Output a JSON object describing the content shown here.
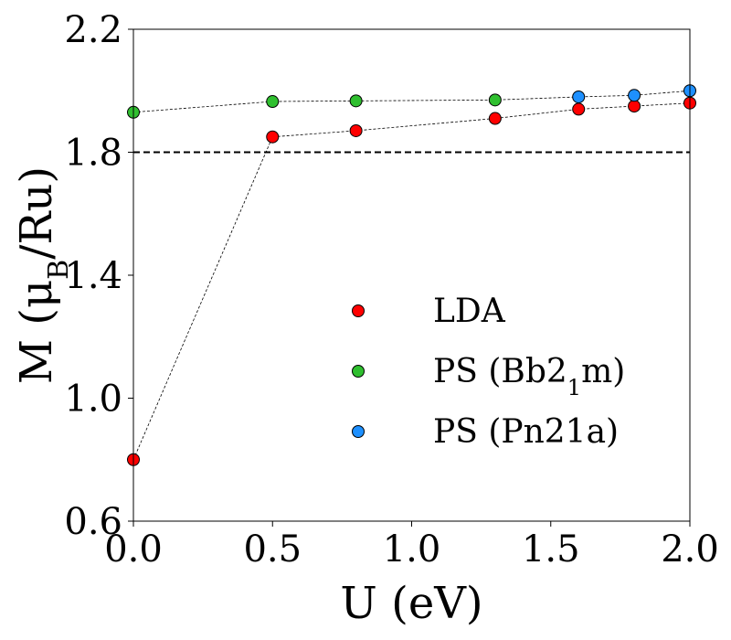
{
  "chart_data": {
    "type": "scatter",
    "xlabel": "U (eV)",
    "ylabel": "M (μ",
    "ylabel_sub": "B",
    "ylabel_tail": "/Ru)",
    "xlim": [
      0.0,
      2.0
    ],
    "ylim": [
      0.6,
      2.2
    ],
    "x_ticks": [
      0.0,
      0.5,
      1.0,
      1.5,
      2.0
    ],
    "x_tick_labels": [
      "0.0",
      "0.5",
      "1.0",
      "1.5",
      "2.0"
    ],
    "y_ticks": [
      0.6,
      1.0,
      1.4,
      1.8,
      2.2
    ],
    "y_tick_labels": [
      "0.6",
      "1.0",
      "1.4",
      "1.8",
      "2.2"
    ],
    "reference_line": {
      "y": 1.8,
      "style": "dashed"
    },
    "legend_position": "center-right",
    "series": [
      {
        "name": "LDA",
        "color": "#ff0000",
        "x": [
          0.0,
          0.5,
          0.8,
          1.3,
          1.6,
          1.8,
          2.0
        ],
        "y": [
          0.8,
          1.85,
          1.87,
          1.91,
          1.94,
          1.95,
          1.96
        ]
      },
      {
        "name": "PS (Bb2",
        "name_sub": "1",
        "name_tail": "m)",
        "color": "#2fbf2f",
        "x": [
          0.0,
          0.5,
          0.8,
          1.3
        ],
        "y": [
          1.93,
          1.965,
          1.967,
          1.97
        ]
      },
      {
        "name": "PS (Pn21a)",
        "color": "#1e90ff",
        "x": [
          1.6,
          1.8,
          2.0
        ],
        "y": [
          1.98,
          1.985,
          2.0
        ]
      }
    ],
    "connecting_line": {
      "x": [
        0.0,
        0.5,
        0.8,
        1.3,
        1.6,
        1.8,
        2.0
      ],
      "y": [
        1.93,
        1.965,
        1.967,
        1.97,
        1.98,
        1.985,
        2.0
      ]
    }
  }
}
